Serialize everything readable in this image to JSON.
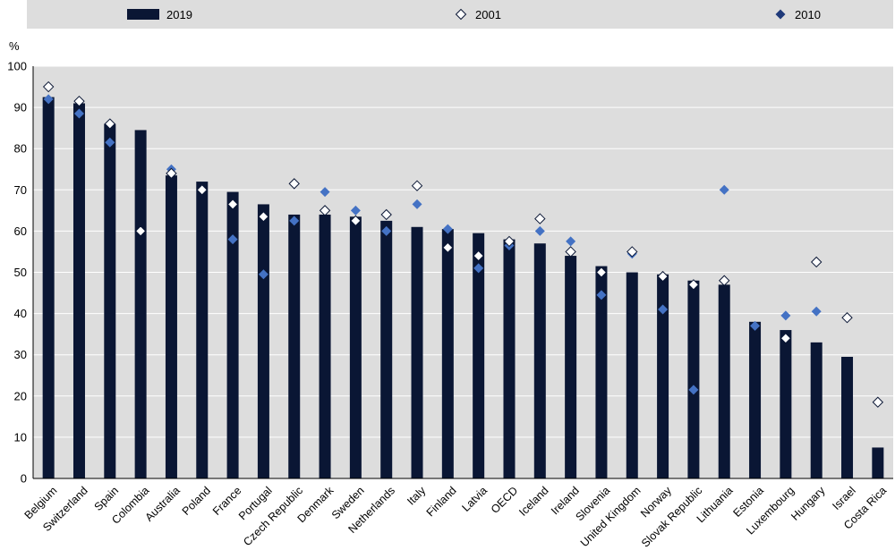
{
  "chart_data": {
    "type": "bar",
    "title": "",
    "xlabel": "",
    "ylabel": "%",
    "ylim": [
      0,
      100
    ],
    "yticks": [
      0,
      10,
      20,
      30,
      40,
      50,
      60,
      70,
      80,
      90,
      100
    ],
    "grid": true,
    "legend_position": "top",
    "categories": [
      "Belgium",
      "Switzerland",
      "Spain",
      "Colombia",
      "Australia",
      "Poland",
      "France",
      "Portugal",
      "Czech Republic",
      "Denmark",
      "Sweden",
      "Netherlands",
      "Italy",
      "Finland",
      "Latvia",
      "OECD",
      "Iceland",
      "Ireland",
      "Slovenia",
      "United Kingdom",
      "Norway",
      "Slovak Republic",
      "Lithuania",
      "Estonia",
      "Luxembourg",
      "Hungary",
      "Israel",
      "Costa Rica"
    ],
    "series": [
      {
        "name": "2019",
        "marker": "bar",
        "color": "#0a1634",
        "values": [
          92.5,
          91,
          86,
          84.5,
          73.5,
          72,
          69.5,
          66.5,
          64,
          64,
          63.5,
          62.5,
          61,
          60.5,
          59.5,
          58,
          57,
          54,
          51.5,
          50,
          49.5,
          48,
          47,
          38,
          36,
          33,
          29.5,
          7.5
        ]
      },
      {
        "name": "2001",
        "marker": "diamond-open",
        "color": "#ffffff",
        "values": [
          95,
          91.5,
          86,
          60,
          74,
          70,
          66.5,
          63.5,
          71.5,
          65,
          62.5,
          64,
          71,
          56,
          54,
          57.5,
          63,
          55,
          50,
          55,
          49,
          47,
          48,
          null,
          34,
          52.5,
          39,
          18.5
        ]
      },
      {
        "name": "2010",
        "marker": "diamond",
        "color": "#4472c4",
        "values": [
          92,
          88.5,
          81.5,
          null,
          75,
          null,
          58,
          49.5,
          62.5,
          69.5,
          65,
          60,
          66.5,
          60.5,
          51,
          56.5,
          60,
          57.5,
          44.5,
          54.5,
          41,
          21.5,
          70,
          37,
          39.5,
          40.5,
          null,
          null
        ]
      }
    ]
  },
  "colors": {
    "plot_background": "#dddddd",
    "legend_background": "#dddddd",
    "gridline": "#ffffff",
    "legend_2010_swatch": "#1f3a7a"
  }
}
